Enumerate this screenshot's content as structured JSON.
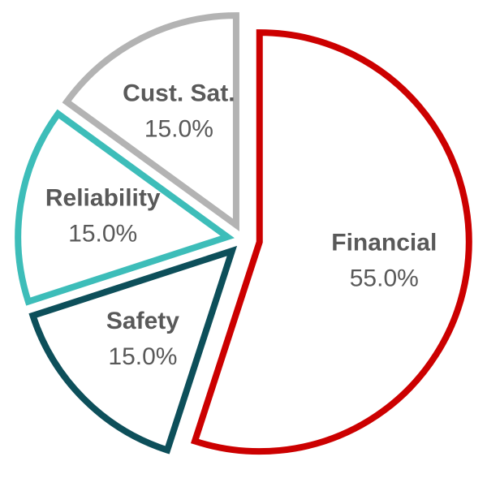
{
  "chart_data": {
    "type": "pie",
    "categories": [
      "Financial",
      "Safety",
      "Reliability",
      "Cust. Sat."
    ],
    "values": [
      55,
      15,
      15,
      15
    ],
    "value_labels": [
      "55.0%",
      "15.0%",
      "15.0%",
      "15.0%"
    ],
    "colors": [
      "#cc0000",
      "#0d4f5a",
      "#3dbdb9",
      "#b3b3b3"
    ]
  }
}
